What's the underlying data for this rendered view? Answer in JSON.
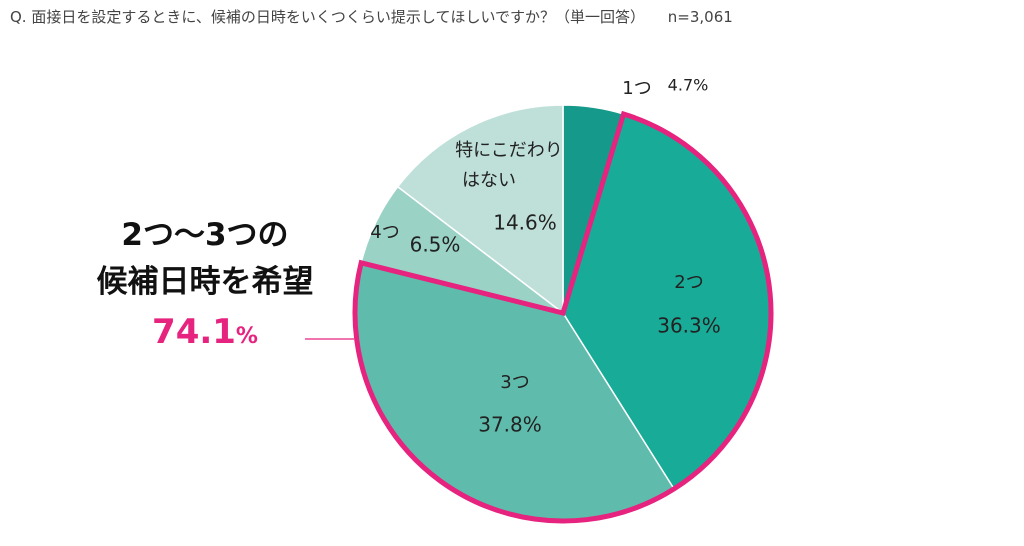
{
  "question": {
    "text": "Q.  面接日を設定するときに、候補の日時をいくつくらい提示してほしいですか？（単一回答）",
    "sample": "n=3,061"
  },
  "highlight": {
    "line1": "2つ〜3つの",
    "line2": "候補日時を希望",
    "value": "74.1",
    "unit": "%",
    "color": "#e6237e"
  },
  "chart_data": {
    "type": "pie",
    "title": "Q.  面接日を設定するときに、候補の日時をいくつくらい提示してほしいですか？（単一回答）",
    "sample_size": "n=3,061",
    "start": "12 o'clock",
    "direction": "clockwise",
    "slices": [
      {
        "label": "1つ",
        "value": 4.7,
        "display": "4.7%",
        "color": "#14998a",
        "highlighted": false
      },
      {
        "label": "2つ",
        "value": 36.3,
        "display": "36.3%",
        "color": "#17ab98",
        "highlighted": true
      },
      {
        "label": "3つ",
        "value": 37.8,
        "display": "37.8%",
        "color": "#5fbcac",
        "highlighted": true
      },
      {
        "label": "4つ",
        "value": 6.5,
        "display": "6.5%",
        "color": "#9bd2c6",
        "highlighted": false
      },
      {
        "label": "特にこだわりはない",
        "label_lines": [
          "特にこだわり",
          "はない"
        ],
        "value": 14.6,
        "display": "14.6%",
        "color": "#bfe0d9",
        "highlighted": false
      }
    ],
    "highlight_color": "#e6237e"
  }
}
